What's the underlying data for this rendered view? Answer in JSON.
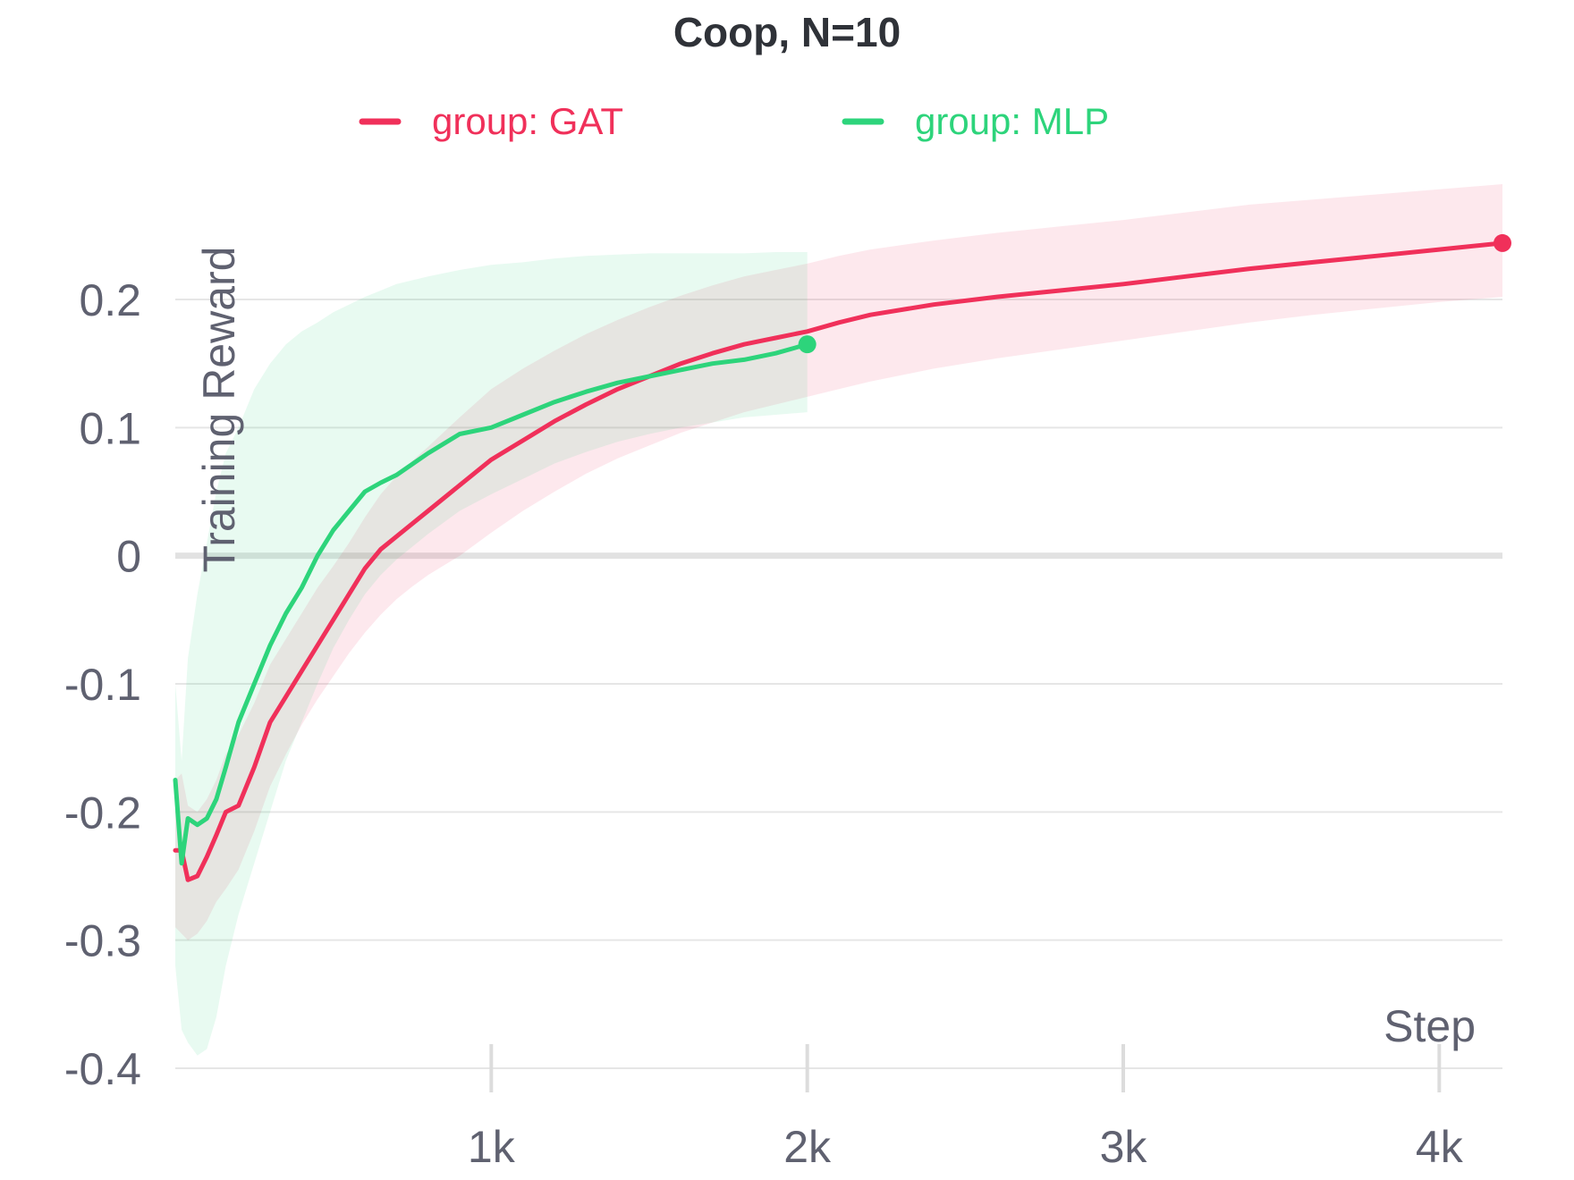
{
  "chart_data": {
    "type": "line",
    "title": "Coop, N=10",
    "xlabel": "Step",
    "ylabel": "Training Reward",
    "xlim": [
      0,
      4200
    ],
    "ylim": [
      -0.4,
      0.28
    ],
    "x_ticks": [
      {
        "value": 1000,
        "label": "1k"
      },
      {
        "value": 2000,
        "label": "2k"
      },
      {
        "value": 3000,
        "label": "3k"
      },
      {
        "value": 4000,
        "label": "4k"
      }
    ],
    "y_ticks": [
      {
        "value": 0.2,
        "label": "0.2"
      },
      {
        "value": 0.1,
        "label": "0.1"
      },
      {
        "value": 0,
        "label": "0"
      },
      {
        "value": -0.1,
        "label": "-0.1"
      },
      {
        "value": -0.2,
        "label": "-0.2"
      },
      {
        "value": -0.3,
        "label": "-0.3"
      },
      {
        "value": -0.4,
        "label": "-0.4"
      }
    ],
    "grid": true,
    "legend_position": "top-center",
    "series": [
      {
        "name": "group: GAT",
        "color": "#f0305a",
        "band_color": "#f0305a",
        "x": [
          0,
          20,
          40,
          70,
          100,
          130,
          160,
          200,
          250,
          300,
          350,
          400,
          450,
          500,
          550,
          600,
          650,
          700,
          750,
          800,
          900,
          1000,
          1100,
          1200,
          1300,
          1400,
          1500,
          1600,
          1700,
          1800,
          1900,
          2000,
          2100,
          2200,
          2400,
          2600,
          2800,
          3000,
          3200,
          3400,
          3600,
          3800,
          4000,
          4200
        ],
        "y": [
          -0.23,
          -0.23,
          -0.253,
          -0.25,
          -0.235,
          -0.218,
          -0.2,
          -0.195,
          -0.165,
          -0.13,
          -0.11,
          -0.09,
          -0.07,
          -0.05,
          -0.03,
          -0.01,
          0.005,
          0.015,
          0.025,
          0.035,
          0.055,
          0.075,
          0.09,
          0.105,
          0.118,
          0.13,
          0.14,
          0.15,
          0.158,
          0.165,
          0.17,
          0.175,
          0.182,
          0.188,
          0.196,
          0.202,
          0.207,
          0.212,
          0.218,
          0.224,
          0.229,
          0.234,
          0.239,
          0.244
        ],
        "lower": [
          -0.29,
          -0.295,
          -0.3,
          -0.295,
          -0.285,
          -0.27,
          -0.26,
          -0.245,
          -0.215,
          -0.18,
          -0.155,
          -0.132,
          -0.112,
          -0.094,
          -0.076,
          -0.06,
          -0.046,
          -0.034,
          -0.024,
          -0.015,
          0.0,
          0.018,
          0.035,
          0.05,
          0.064,
          0.076,
          0.086,
          0.096,
          0.104,
          0.112,
          0.118,
          0.124,
          0.13,
          0.136,
          0.146,
          0.154,
          0.161,
          0.168,
          0.175,
          0.182,
          0.188,
          0.193,
          0.198,
          0.202
        ],
        "upper": [
          -0.175,
          -0.17,
          -0.195,
          -0.2,
          -0.19,
          -0.175,
          -0.155,
          -0.14,
          -0.115,
          -0.085,
          -0.065,
          -0.045,
          -0.025,
          -0.008,
          0.01,
          0.03,
          0.048,
          0.062,
          0.074,
          0.085,
          0.108,
          0.13,
          0.146,
          0.16,
          0.173,
          0.184,
          0.194,
          0.203,
          0.211,
          0.218,
          0.223,
          0.228,
          0.234,
          0.239,
          0.246,
          0.252,
          0.257,
          0.262,
          0.268,
          0.274,
          0.278,
          0.282,
          0.286,
          0.29
        ]
      },
      {
        "name": "group: MLP",
        "color": "#2dd47b",
        "band_color": "#2dd47b",
        "x": [
          0,
          20,
          40,
          70,
          100,
          130,
          160,
          200,
          250,
          300,
          350,
          400,
          450,
          500,
          550,
          600,
          650,
          700,
          800,
          900,
          1000,
          1100,
          1200,
          1300,
          1400,
          1500,
          1600,
          1700,
          1800,
          1900,
          2000
        ],
        "y": [
          -0.175,
          -0.24,
          -0.205,
          -0.21,
          -0.205,
          -0.19,
          -0.165,
          -0.13,
          -0.1,
          -0.07,
          -0.045,
          -0.025,
          0.0,
          0.02,
          0.035,
          0.05,
          0.057,
          0.063,
          0.08,
          0.095,
          0.1,
          0.11,
          0.12,
          0.128,
          0.135,
          0.14,
          0.145,
          0.15,
          0.153,
          0.158,
          0.165
        ],
        "lower": [
          -0.32,
          -0.37,
          -0.38,
          -0.39,
          -0.385,
          -0.36,
          -0.32,
          -0.28,
          -0.24,
          -0.2,
          -0.16,
          -0.13,
          -0.1,
          -0.072,
          -0.05,
          -0.03,
          -0.015,
          -0.003,
          0.017,
          0.035,
          0.048,
          0.06,
          0.072,
          0.081,
          0.089,
          0.095,
          0.1,
          0.104,
          0.108,
          0.11,
          0.112
        ],
        "upper": [
          -0.1,
          -0.16,
          -0.08,
          -0.03,
          0.01,
          0.05,
          0.08,
          0.1,
          0.13,
          0.15,
          0.165,
          0.175,
          0.182,
          0.19,
          0.196,
          0.202,
          0.207,
          0.212,
          0.218,
          0.223,
          0.227,
          0.229,
          0.232,
          0.234,
          0.235,
          0.236,
          0.236,
          0.236,
          0.236,
          0.237,
          0.237
        ]
      }
    ]
  }
}
